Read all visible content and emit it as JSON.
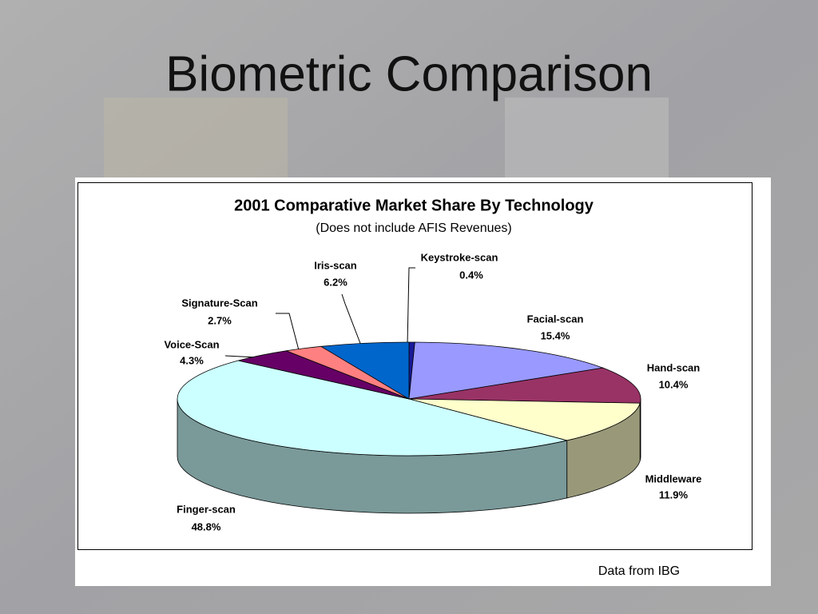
{
  "slide": {
    "title": "Biometric Comparison"
  },
  "chart_data": {
    "type": "pie",
    "title": "2001 Comparative Market Share By Technology",
    "subtitle": "(Does not include AFIS Revenues)",
    "categories": [
      "Keystroke-scan",
      "Facial-scan",
      "Hand-scan",
      "Middleware",
      "Finger-scan",
      "Voice-Scan",
      "Signature-Scan",
      "Iris-scan"
    ],
    "values": [
      0.4,
      15.4,
      10.4,
      11.9,
      48.8,
      4.3,
      2.7,
      6.2
    ],
    "value_labels": [
      "0.4%",
      "15.4%",
      "10.4%",
      "11.9%",
      "48.8%",
      "4.3%",
      "2.7%",
      "6.2%"
    ],
    "colors": [
      "#1a1a9a",
      "#9999ff",
      "#993366",
      "#ffffcc",
      "#ccffff",
      "#660066",
      "#ff8080",
      "#0066cc"
    ],
    "source": "Data from IBG"
  }
}
